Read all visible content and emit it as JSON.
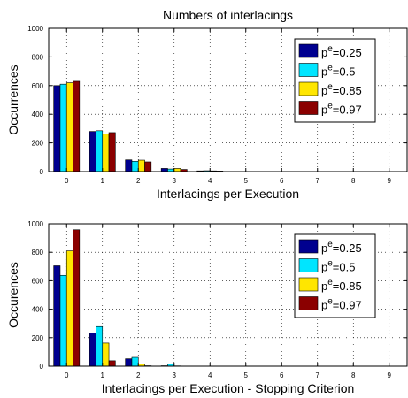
{
  "chart_data": [
    {
      "type": "bar",
      "title": "Numbers of interlacings",
      "xlabel": "Interlacings per Execution",
      "ylabel": "Occurrences",
      "categories": [
        "0",
        "1",
        "2",
        "3",
        "4",
        "5",
        "6",
        "7",
        "8",
        "9"
      ],
      "ylim": [
        0,
        1000
      ],
      "yticks": [
        "0",
        "200",
        "400",
        "600",
        "800",
        "1000"
      ],
      "grid": true,
      "legend_position": "top-right",
      "series": [
        {
          "name": "p^e=0.25",
          "color": "#00008f",
          "values": [
            600,
            280,
            82,
            22,
            5,
            1,
            0,
            0,
            0,
            0
          ]
        },
        {
          "name": "p^e=0.5",
          "color": "#00e5ff",
          "values": [
            610,
            285,
            72,
            18,
            6,
            1,
            0,
            0,
            0,
            0
          ]
        },
        {
          "name": "p^e=0.85",
          "color": "#ffe600",
          "values": [
            620,
            262,
            80,
            22,
            5,
            1,
            0,
            0,
            0,
            0
          ]
        },
        {
          "name": "p^e=0.97",
          "color": "#8b0000",
          "values": [
            630,
            272,
            68,
            15,
            4,
            1,
            0,
            0,
            0,
            0
          ]
        }
      ]
    },
    {
      "type": "bar",
      "title": "",
      "xlabel": "Interlacings per Execution - Stopping Criterion",
      "ylabel": "Occurences",
      "categories": [
        "0",
        "1",
        "2",
        "3",
        "4",
        "5",
        "6",
        "7",
        "8",
        "9"
      ],
      "ylim": [
        0,
        1000
      ],
      "yticks": [
        "0",
        "200",
        "400",
        "600",
        "800",
        "1000"
      ],
      "grid": true,
      "legend_position": "top-right",
      "series": [
        {
          "name": "p^e=0.25",
          "color": "#00008f",
          "values": [
            705,
            232,
            52,
            3,
            1,
            0,
            0,
            0,
            0,
            0
          ]
        },
        {
          "name": "p^e=0.5",
          "color": "#00e5ff",
          "values": [
            638,
            278,
            62,
            14,
            1,
            0,
            0,
            0,
            0,
            0
          ]
        },
        {
          "name": "p^e=0.85",
          "color": "#ffe600",
          "values": [
            810,
            162,
            16,
            2,
            0,
            0,
            0,
            0,
            0,
            0
          ]
        },
        {
          "name": "p^e=0.97",
          "color": "#8b0000",
          "values": [
            958,
            38,
            3,
            1,
            0,
            0,
            0,
            0,
            0,
            0
          ]
        }
      ]
    }
  ]
}
